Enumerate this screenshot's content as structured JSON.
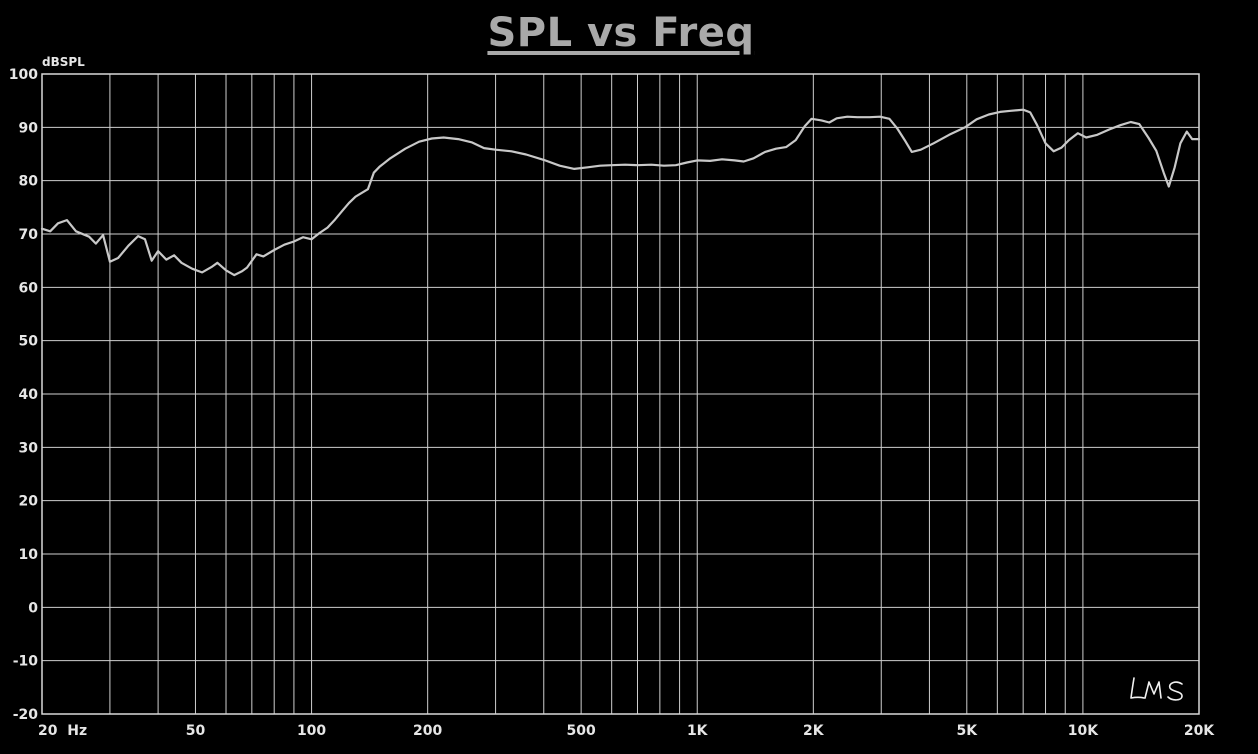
{
  "chart_data": {
    "type": "line",
    "title": "SPL vs Freq",
    "ylabel": "dBSPL",
    "xscale": "log",
    "xlim": [
      20,
      20000
    ],
    "ylim": [
      -20,
      100
    ],
    "grid": true,
    "y_ticks": [
      100,
      90,
      80,
      70,
      60,
      50,
      40,
      30,
      20,
      10,
      0,
      -10,
      -20
    ],
    "x_ticks": [
      {
        "value": 20,
        "label": "20  Hz"
      },
      {
        "value": 50,
        "label": "50"
      },
      {
        "value": 100,
        "label": "100"
      },
      {
        "value": 200,
        "label": "200"
      },
      {
        "value": 500,
        "label": "500"
      },
      {
        "value": 1000,
        "label": "1K"
      },
      {
        "value": 2000,
        "label": "2K"
      },
      {
        "value": 5000,
        "label": "5K"
      },
      {
        "value": 10000,
        "label": "10K"
      },
      {
        "value": 20000,
        "label": "20K"
      }
    ],
    "series": [
      {
        "color": "#c8c8c8",
        "points": [
          [
            20,
            71
          ],
          [
            21,
            70.5
          ],
          [
            22,
            72
          ],
          [
            23.2,
            72.6
          ],
          [
            24.5,
            70.5
          ],
          [
            26.5,
            69.5
          ],
          [
            27.6,
            68.2
          ],
          [
            28.8,
            69.8
          ],
          [
            30,
            64.8
          ],
          [
            31.5,
            65.5
          ],
          [
            33.5,
            67.8
          ],
          [
            35.5,
            69.6
          ],
          [
            37,
            69
          ],
          [
            38.5,
            65
          ],
          [
            40,
            66.8
          ],
          [
            42,
            65.2
          ],
          [
            44,
            66
          ],
          [
            46,
            64.6
          ],
          [
            49,
            63.5
          ],
          [
            52,
            62.8
          ],
          [
            55,
            63.8
          ],
          [
            57,
            64.6
          ],
          [
            60,
            63.2
          ],
          [
            63,
            62.3
          ],
          [
            66,
            63
          ],
          [
            68,
            63.7
          ],
          [
            72,
            66.2
          ],
          [
            75,
            65.8
          ],
          [
            80,
            67
          ],
          [
            85,
            68
          ],
          [
            90,
            68.6
          ],
          [
            95,
            69.4
          ],
          [
            100,
            69
          ],
          [
            105,
            70.2
          ],
          [
            110,
            71.2
          ],
          [
            115,
            72.7
          ],
          [
            120,
            74.3
          ],
          [
            125,
            75.8
          ],
          [
            130,
            77
          ],
          [
            140,
            78.4
          ],
          [
            145,
            81.5
          ],
          [
            150,
            82.6
          ],
          [
            160,
            84.2
          ],
          [
            175,
            86
          ],
          [
            190,
            87.3
          ],
          [
            205,
            87.9
          ],
          [
            220,
            88.1
          ],
          [
            240,
            87.8
          ],
          [
            260,
            87.2
          ],
          [
            280,
            86.1
          ],
          [
            300,
            85.8
          ],
          [
            330,
            85.5
          ],
          [
            360,
            84.9
          ],
          [
            400,
            83.9
          ],
          [
            440,
            82.8
          ],
          [
            480,
            82.2
          ],
          [
            520,
            82.5
          ],
          [
            560,
            82.8
          ],
          [
            600,
            82.9
          ],
          [
            650,
            83
          ],
          [
            700,
            82.9
          ],
          [
            760,
            83
          ],
          [
            820,
            82.8
          ],
          [
            880,
            82.9
          ],
          [
            940,
            83.4
          ],
          [
            1000,
            83.8
          ],
          [
            1080,
            83.7
          ],
          [
            1160,
            84
          ],
          [
            1250,
            83.8
          ],
          [
            1320,
            83.6
          ],
          [
            1400,
            84.2
          ],
          [
            1500,
            85.4
          ],
          [
            1600,
            86
          ],
          [
            1700,
            86.3
          ],
          [
            1800,
            87.6
          ],
          [
            1900,
            90.2
          ],
          [
            1980,
            91.6
          ],
          [
            2100,
            91.3
          ],
          [
            2200,
            90.9
          ],
          [
            2300,
            91.7
          ],
          [
            2450,
            92
          ],
          [
            2600,
            91.9
          ],
          [
            2800,
            91.9
          ],
          [
            2980,
            92
          ],
          [
            3150,
            91.6
          ],
          [
            3300,
            89.8
          ],
          [
            3450,
            87.6
          ],
          [
            3600,
            85.4
          ],
          [
            3800,
            85.8
          ],
          [
            4100,
            87
          ],
          [
            4500,
            88.6
          ],
          [
            4950,
            90
          ],
          [
            5300,
            91.5
          ],
          [
            5700,
            92.4
          ],
          [
            6100,
            92.9
          ],
          [
            6500,
            93.1
          ],
          [
            7000,
            93.3
          ],
          [
            7300,
            92.8
          ],
          [
            7600,
            90.5
          ],
          [
            8000,
            87
          ],
          [
            8400,
            85.5
          ],
          [
            8800,
            86.2
          ],
          [
            9200,
            87.6
          ],
          [
            9700,
            88.9
          ],
          [
            10200,
            88.1
          ],
          [
            10900,
            88.6
          ],
          [
            11700,
            89.6
          ],
          [
            12500,
            90.4
          ],
          [
            13300,
            91
          ],
          [
            14000,
            90.6
          ],
          [
            14800,
            88
          ],
          [
            15500,
            85.6
          ],
          [
            16200,
            81.5
          ],
          [
            16700,
            78.9
          ],
          [
            17300,
            82.5
          ],
          [
            17900,
            87
          ],
          [
            18600,
            89.2
          ],
          [
            19200,
            87.8
          ],
          [
            20000,
            87.8
          ]
        ]
      }
    ]
  },
  "logo_text": "LMS"
}
